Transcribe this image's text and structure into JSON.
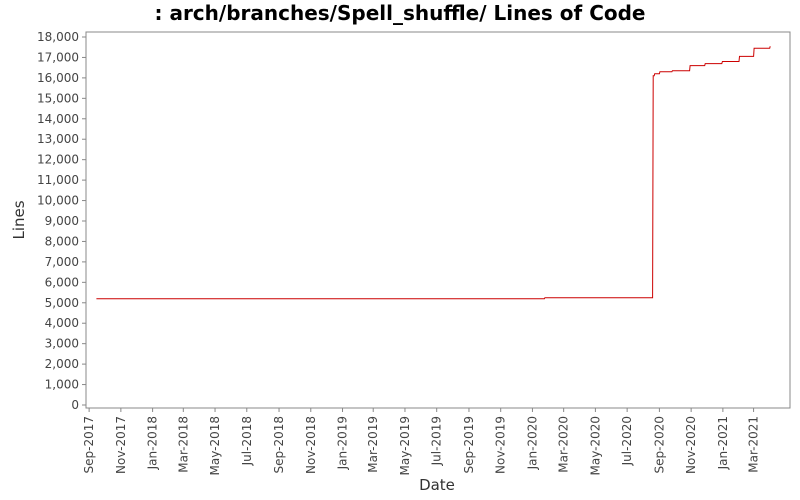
{
  "chart_data": {
    "type": "line",
    "title": ": arch/branches/Spell_shuffle/ Lines of Code",
    "xlabel": "Date",
    "ylabel": "Lines",
    "ylim": [
      0,
      18000
    ],
    "y_ticks": [
      0,
      1000,
      2000,
      3000,
      4000,
      5000,
      6000,
      7000,
      8000,
      9000,
      10000,
      11000,
      12000,
      13000,
      14000,
      15000,
      16000,
      17000,
      18000
    ],
    "y_tick_labels": [
      "0",
      "1,000",
      "2,000",
      "3,000",
      "4,000",
      "5,000",
      "6,000",
      "7,000",
      "8,000",
      "9,000",
      "10,000",
      "11,000",
      "12,000",
      "13,000",
      "14,000",
      "15,000",
      "16,000",
      "17,000",
      "18,000"
    ],
    "xlim": [
      "2017-08-26",
      "2021-05-10"
    ],
    "x_ticks": [
      "2017-09-01",
      "2017-11-01",
      "2018-01-01",
      "2018-03-01",
      "2018-05-01",
      "2018-07-01",
      "2018-09-01",
      "2018-11-01",
      "2019-01-01",
      "2019-03-01",
      "2019-05-01",
      "2019-07-01",
      "2019-09-01",
      "2019-11-01",
      "2020-01-01",
      "2020-03-01",
      "2020-05-01",
      "2020-07-01",
      "2020-09-01",
      "2020-11-01",
      "2021-01-01",
      "2021-03-01"
    ],
    "x_tick_labels": [
      "Sep-2017",
      "Nov-2017",
      "Jan-2018",
      "Mar-2018",
      "May-2018",
      "Jul-2018",
      "Sep-2018",
      "Nov-2018",
      "Jan-2019",
      "Mar-2019",
      "May-2019",
      "Jul-2019",
      "Sep-2019",
      "Nov-2019",
      "Jan-2020",
      "Mar-2020",
      "May-2020",
      "Jul-2020",
      "Sep-2020",
      "Nov-2020",
      "Jan-2021",
      "Mar-2021"
    ],
    "grid": false,
    "line_color": "#cc0000",
    "series": [
      {
        "x": [
          "2017-09-15",
          "2020-01-24",
          "2020-01-25",
          "2020-08-19",
          "2020-08-20",
          "2020-08-22",
          "2020-08-23",
          "2020-09-01",
          "2020-09-02",
          "2020-09-25",
          "2020-09-26",
          "2020-10-29",
          "2020-10-30",
          "2020-11-27",
          "2020-11-28",
          "2020-12-30",
          "2020-12-31",
          "2021-02-01",
          "2021-02-02",
          "2021-03-01",
          "2021-03-02",
          "2021-04-01",
          "2021-04-02"
        ],
        "y": [
          5200,
          5200,
          5250,
          5250,
          16100,
          16100,
          16200,
          16200,
          16300,
          16300,
          16350,
          16350,
          16600,
          16600,
          16700,
          16700,
          16800,
          16800,
          17050,
          17050,
          17450,
          17450,
          17550
        ]
      }
    ]
  }
}
